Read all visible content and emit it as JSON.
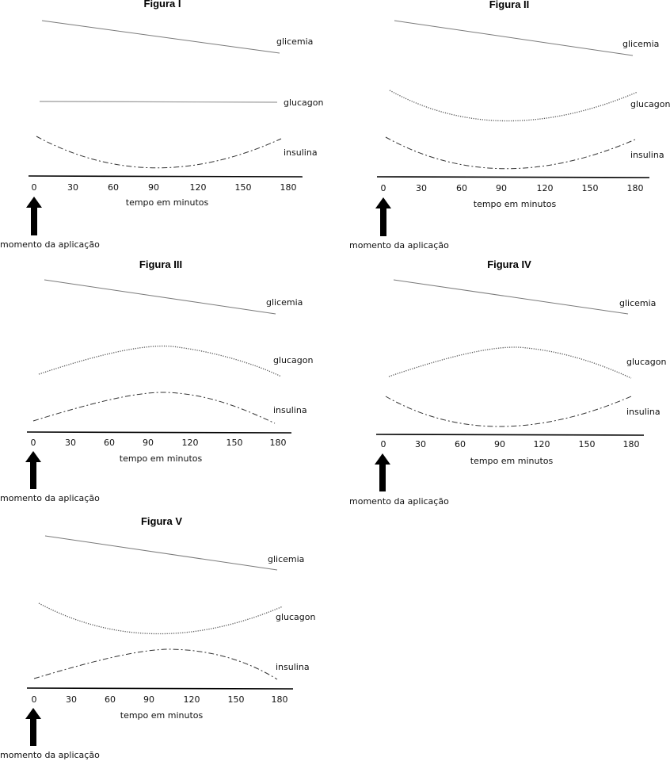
{
  "common": {
    "xlabel": "tempo em minutos",
    "arrow_label": "momento da aplicação",
    "ticks": [
      "0",
      "30",
      "60",
      "90",
      "120",
      "150",
      "180"
    ],
    "series_labels": {
      "glicemia": "glicemia",
      "glucagon": "glucagon",
      "insulina": "insulina"
    }
  },
  "figures": [
    {
      "title": "Figura I",
      "glicemia": "decreasing",
      "glucagon": "constant",
      "insulina": "dip"
    },
    {
      "title": "Figura II",
      "glicemia": "decreasing",
      "glucagon": "dip",
      "insulina": "dip"
    },
    {
      "title": "Figura III",
      "glicemia": "decreasing",
      "glucagon": "rise-then-fall",
      "insulina": "rise-then-fall"
    },
    {
      "title": "Figura IV",
      "glicemia": "decreasing",
      "glucagon": "rise-then-fall",
      "insulina": "dip"
    },
    {
      "title": "Figura V",
      "glicemia": "decreasing",
      "glucagon": "dip",
      "insulina": "rise-then-fall"
    }
  ]
}
